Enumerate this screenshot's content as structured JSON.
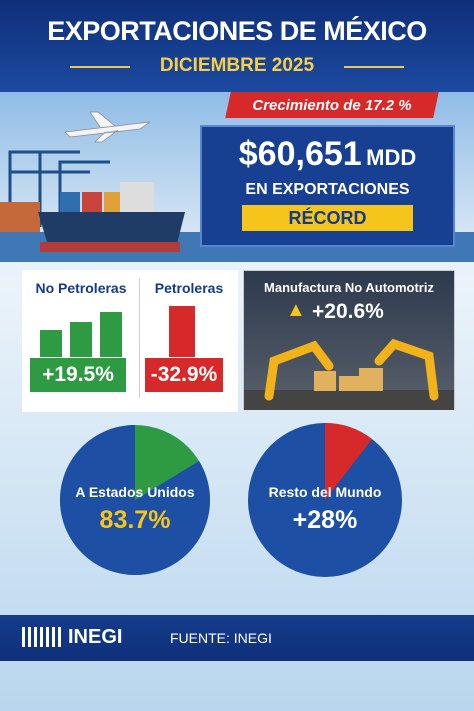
{
  "header": {
    "title": "EXPORTACIONES DE MÉXICO",
    "subtitle": "DICIEMBRE 2025"
  },
  "growth": "Crecimiento de 17.2 %",
  "total": {
    "amount": "$60,651",
    "unit": "MDD",
    "line": "EN EXPORTACIONES",
    "badge": "RÉCORD"
  },
  "segments": [
    {
      "label": "No Petroleras",
      "value_label": "+19.5%"
    },
    {
      "label": "Petroleras",
      "value_label": "-32.9%"
    }
  ],
  "manufacturing": {
    "label": "Manufactura No Automotriz",
    "value_label": "+20.6%"
  },
  "destinations": [
    {
      "label": "A Estados Unidos",
      "value": 83.7,
      "value_label": "83.7%"
    },
    {
      "label": "Resto del Mundo",
      "value_label": "+28%"
    }
  ],
  "footer": {
    "logo": "INEGI",
    "source": "FUENTE: INEGI"
  }
}
